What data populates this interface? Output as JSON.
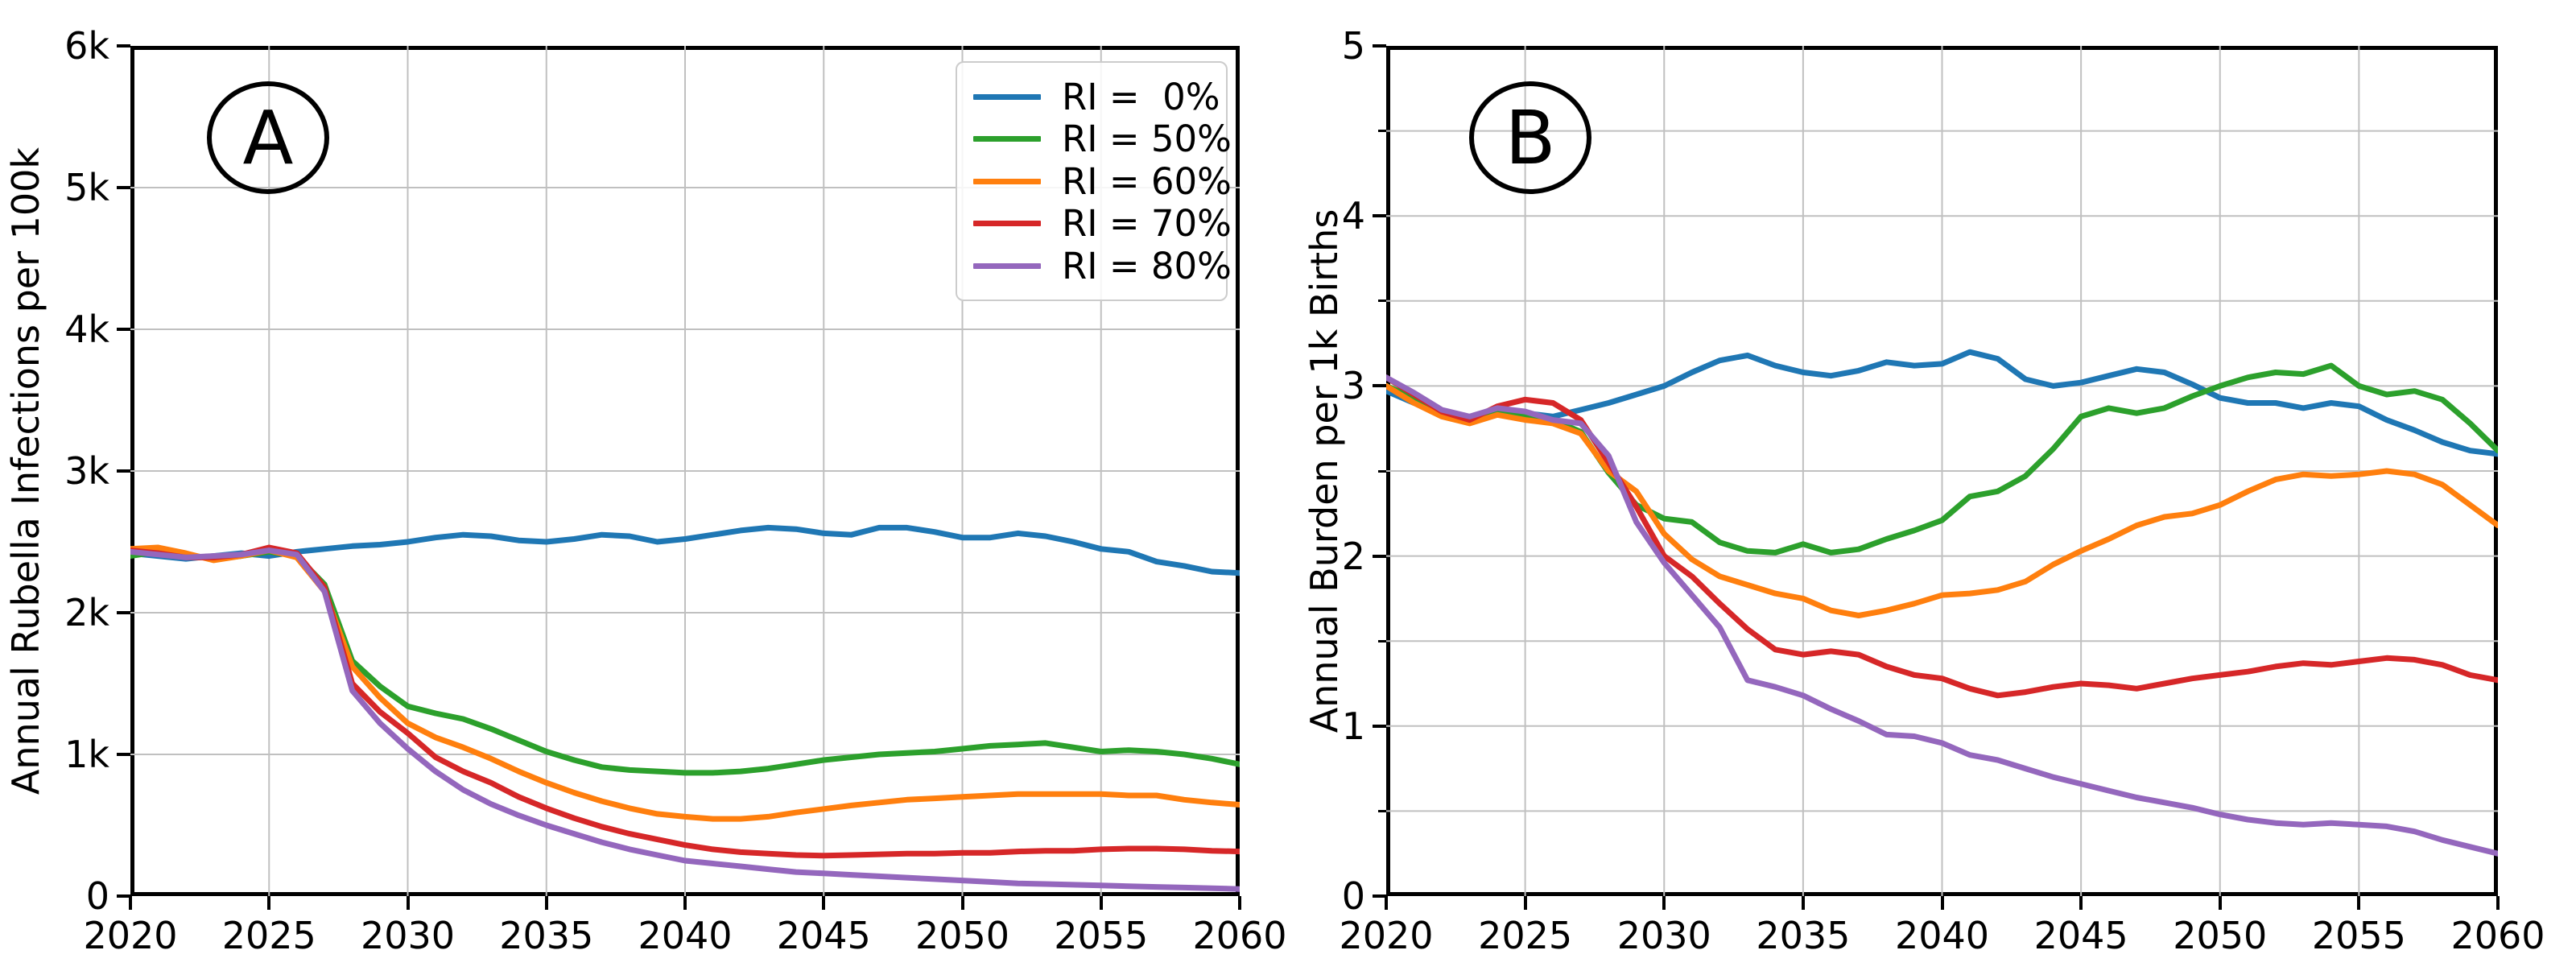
{
  "figure": {
    "background": "#ffffff",
    "description": "Two-panel line chart of rubella model scenarios, 2020-2060"
  },
  "colors": {
    "blue": "#1f77b4",
    "green": "#2ca02c",
    "orange": "#ff7f0e",
    "red": "#d62728",
    "purple": "#9467bd",
    "grid": "#c0c0c0",
    "axis": "#000000",
    "legend_border": "#cccccc"
  },
  "legend": {
    "position": "upper-right of panel A",
    "entries": [
      {
        "key": "ri-0",
        "label": "RI =  0%",
        "color": "#1f77b4"
      },
      {
        "key": "ri-50",
        "label": "RI = 50%",
        "color": "#2ca02c"
      },
      {
        "key": "ri-60",
        "label": "RI = 60%",
        "color": "#ff7f0e"
      },
      {
        "key": "ri-70",
        "label": "RI = 70%",
        "color": "#d62728"
      },
      {
        "key": "ri-80",
        "label": "RI = 80%",
        "color": "#9467bd"
      }
    ]
  },
  "chart_data": [
    {
      "type": "line",
      "title": "A",
      "ylabel": "Annual Rubella Infections per 100k",
      "xlabel": "",
      "xlim": [
        2020,
        2060
      ],
      "ylim": [
        0,
        6000
      ],
      "xticks": {
        "values": [
          2020,
          2025,
          2030,
          2035,
          2040,
          2045,
          2050,
          2055,
          2060
        ],
        "labels": [
          "2020",
          "2025",
          "2030",
          "2035",
          "2040",
          "2045",
          "2050",
          "2055",
          "2060"
        ]
      },
      "yticks": {
        "values": [
          0,
          1000,
          2000,
          3000,
          4000,
          5000,
          6000
        ],
        "labels": [
          "0",
          "1k",
          "2k",
          "3k",
          "4k",
          "5k",
          "6k"
        ]
      },
      "xgrid_values": [
        2025,
        2030,
        2035,
        2040,
        2045,
        2050,
        2055
      ],
      "ygrid_values": [
        1000,
        2000,
        3000,
        4000,
        5000
      ],
      "yminor_values": [],
      "grid": true,
      "legend": true,
      "x": [
        2020,
        2021,
        2022,
        2023,
        2024,
        2025,
        2026,
        2027,
        2028,
        2029,
        2030,
        2031,
        2032,
        2033,
        2034,
        2035,
        2036,
        2037,
        2038,
        2039,
        2040,
        2041,
        2042,
        2043,
        2044,
        2045,
        2046,
        2047,
        2048,
        2049,
        2050,
        2051,
        2052,
        2053,
        2054,
        2055,
        2056,
        2057,
        2058,
        2059,
        2060
      ],
      "series": [
        {
          "key": "ri-0",
          "name": "RI =  0%",
          "color": "#1f77b4",
          "values": [
            2420,
            2400,
            2380,
            2400,
            2420,
            2400,
            2430,
            2450,
            2470,
            2480,
            2500,
            2530,
            2550,
            2540,
            2510,
            2500,
            2520,
            2550,
            2540,
            2500,
            2520,
            2550,
            2580,
            2600,
            2590,
            2560,
            2550,
            2600,
            2600,
            2570,
            2530,
            2530,
            2560,
            2540,
            2500,
            2450,
            2430,
            2360,
            2330,
            2290,
            2280
          ]
        },
        {
          "key": "ri-50",
          "name": "RI = 50%",
          "color": "#2ca02c",
          "values": [
            2400,
            2430,
            2410,
            2380,
            2400,
            2430,
            2400,
            2200,
            1660,
            1480,
            1340,
            1290,
            1250,
            1180,
            1100,
            1020,
            960,
            910,
            890,
            880,
            870,
            870,
            880,
            900,
            930,
            960,
            980,
            1000,
            1010,
            1020,
            1040,
            1060,
            1070,
            1080,
            1050,
            1020,
            1030,
            1020,
            1000,
            970,
            930
          ]
        },
        {
          "key": "ri-60",
          "name": "RI = 60%",
          "color": "#ff7f0e",
          "values": [
            2450,
            2460,
            2420,
            2370,
            2400,
            2440,
            2390,
            2150,
            1620,
            1400,
            1220,
            1120,
            1050,
            970,
            880,
            800,
            730,
            670,
            620,
            580,
            560,
            545,
            545,
            560,
            590,
            615,
            640,
            660,
            680,
            690,
            700,
            710,
            720,
            720,
            720,
            720,
            710,
            710,
            680,
            660,
            645
          ]
        },
        {
          "key": "ri-70",
          "name": "RI = 70%",
          "color": "#d62728",
          "values": [
            2440,
            2420,
            2390,
            2390,
            2410,
            2460,
            2420,
            2180,
            1500,
            1300,
            1150,
            980,
            880,
            800,
            700,
            620,
            550,
            490,
            440,
            400,
            360,
            330,
            310,
            300,
            290,
            285,
            290,
            295,
            300,
            300,
            305,
            305,
            315,
            320,
            320,
            330,
            335,
            335,
            330,
            320,
            315
          ]
        },
        {
          "key": "ri-80",
          "name": "RI = 80%",
          "color": "#9467bd",
          "values": [
            2430,
            2410,
            2390,
            2400,
            2410,
            2440,
            2410,
            2150,
            1450,
            1220,
            1040,
            880,
            750,
            650,
            570,
            500,
            440,
            380,
            330,
            290,
            250,
            230,
            210,
            190,
            170,
            160,
            150,
            140,
            130,
            120,
            110,
            100,
            90,
            85,
            80,
            75,
            70,
            65,
            60,
            55,
            50
          ]
        }
      ]
    },
    {
      "type": "line",
      "title": "B",
      "ylabel": "Annual Burden per 1k Births",
      "xlabel": "",
      "xlim": [
        2020,
        2060
      ],
      "ylim": [
        0,
        5
      ],
      "xticks": {
        "values": [
          2020,
          2025,
          2030,
          2035,
          2040,
          2045,
          2050,
          2055,
          2060
        ],
        "labels": [
          "2020",
          "2025",
          "2030",
          "2035",
          "2040",
          "2045",
          "2050",
          "2055",
          "2060"
        ]
      },
      "yticks": {
        "values": [
          0,
          1,
          2,
          3,
          4,
          5
        ],
        "labels": [
          "0",
          "1",
          "2",
          "3",
          "4",
          "5"
        ]
      },
      "xgrid_values": [
        2025,
        2030,
        2035,
        2040,
        2045,
        2050,
        2055
      ],
      "ygrid_values": [
        0.5,
        1,
        1.5,
        2,
        2.5,
        3,
        3.5,
        4,
        4.5
      ],
      "yminor_values": [
        0.5,
        1.5,
        2.5,
        3.5,
        4.5
      ],
      "grid": true,
      "legend": false,
      "x": [
        2020,
        2021,
        2022,
        2023,
        2024,
        2025,
        2026,
        2027,
        2028,
        2029,
        2030,
        2031,
        2032,
        2033,
        2034,
        2035,
        2036,
        2037,
        2038,
        2039,
        2040,
        2041,
        2042,
        2043,
        2044,
        2045,
        2046,
        2047,
        2048,
        2049,
        2050,
        2051,
        2052,
        2053,
        2054,
        2055,
        2056,
        2057,
        2058,
        2059,
        2060
      ],
      "series": [
        {
          "key": "ri-0",
          "name": "RI =  0%",
          "color": "#1f77b4",
          "values": [
            2.97,
            2.9,
            2.84,
            2.8,
            2.86,
            2.84,
            2.82,
            2.86,
            2.9,
            2.95,
            3.0,
            3.08,
            3.15,
            3.18,
            3.12,
            3.08,
            3.06,
            3.09,
            3.14,
            3.12,
            3.13,
            3.2,
            3.16,
            3.04,
            3.0,
            3.02,
            3.06,
            3.1,
            3.08,
            3.01,
            2.93,
            2.9,
            2.9,
            2.87,
            2.9,
            2.88,
            2.8,
            2.74,
            2.67,
            2.62,
            2.6
          ]
        },
        {
          "key": "ri-50",
          "name": "RI = 50%",
          "color": "#2ca02c",
          "values": [
            3.0,
            2.93,
            2.85,
            2.8,
            2.84,
            2.82,
            2.8,
            2.73,
            2.49,
            2.3,
            2.22,
            2.2,
            2.08,
            2.03,
            2.02,
            2.07,
            2.02,
            2.04,
            2.1,
            2.15,
            2.21,
            2.35,
            2.38,
            2.47,
            2.63,
            2.82,
            2.87,
            2.84,
            2.87,
            2.94,
            3.0,
            3.05,
            3.08,
            3.07,
            3.12,
            3.0,
            2.95,
            2.97,
            2.92,
            2.78,
            2.62
          ]
        },
        {
          "key": "ri-60",
          "name": "RI = 60%",
          "color": "#ff7f0e",
          "values": [
            3.0,
            2.9,
            2.82,
            2.78,
            2.83,
            2.8,
            2.78,
            2.72,
            2.5,
            2.38,
            2.13,
            1.98,
            1.88,
            1.83,
            1.78,
            1.75,
            1.68,
            1.65,
            1.68,
            1.72,
            1.77,
            1.78,
            1.8,
            1.85,
            1.95,
            2.03,
            2.1,
            2.18,
            2.23,
            2.25,
            2.3,
            2.38,
            2.45,
            2.48,
            2.47,
            2.48,
            2.5,
            2.48,
            2.42,
            2.3,
            2.18
          ]
        },
        {
          "key": "ri-70",
          "name": "RI = 70%",
          "color": "#d62728",
          "values": [
            3.05,
            2.95,
            2.85,
            2.8,
            2.88,
            2.92,
            2.9,
            2.8,
            2.55,
            2.29,
            2.0,
            1.88,
            1.72,
            1.57,
            1.45,
            1.42,
            1.44,
            1.42,
            1.35,
            1.3,
            1.28,
            1.22,
            1.18,
            1.2,
            1.23,
            1.25,
            1.24,
            1.22,
            1.25,
            1.28,
            1.3,
            1.32,
            1.35,
            1.37,
            1.36,
            1.38,
            1.4,
            1.39,
            1.36,
            1.3,
            1.27
          ]
        },
        {
          "key": "ri-80",
          "name": "RI = 80%",
          "color": "#9467bd",
          "values": [
            3.05,
            2.96,
            2.86,
            2.82,
            2.87,
            2.85,
            2.8,
            2.78,
            2.59,
            2.2,
            1.96,
            1.77,
            1.58,
            1.27,
            1.23,
            1.18,
            1.1,
            1.03,
            0.95,
            0.94,
            0.9,
            0.83,
            0.8,
            0.75,
            0.7,
            0.66,
            0.62,
            0.58,
            0.55,
            0.52,
            0.48,
            0.45,
            0.43,
            0.42,
            0.43,
            0.42,
            0.41,
            0.38,
            0.33,
            0.29,
            0.25
          ]
        }
      ]
    }
  ]
}
